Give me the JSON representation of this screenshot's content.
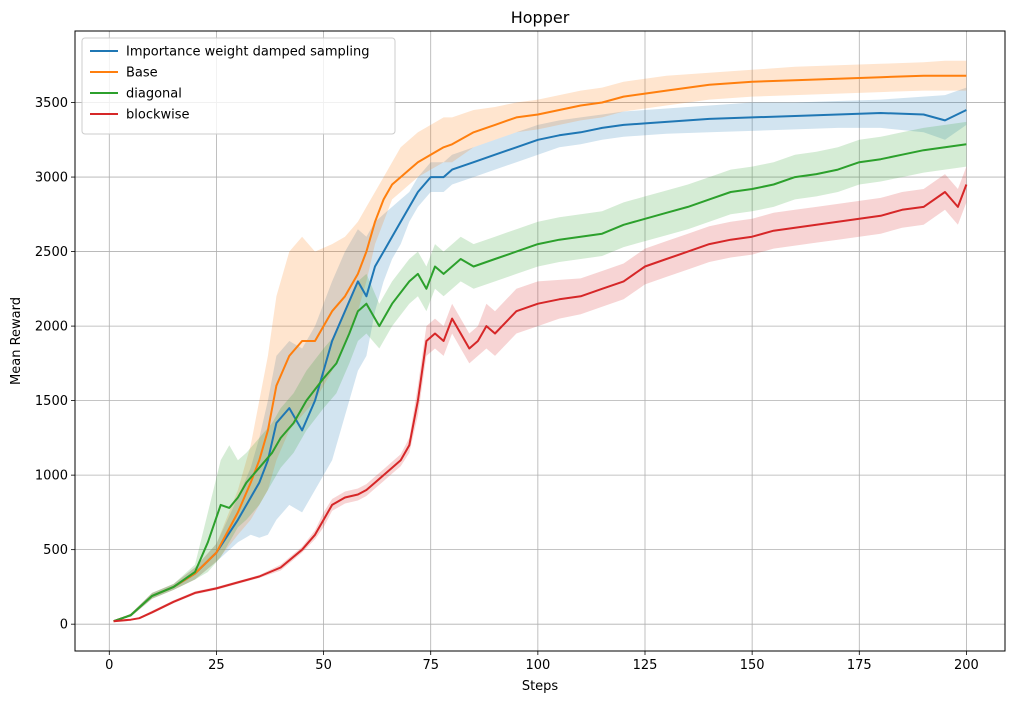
{
  "chart_data": {
    "type": "line",
    "title": "Hopper",
    "xlabel": "Steps",
    "ylabel": "Mean Reward",
    "xlim": [
      -8,
      209
    ],
    "ylim": [
      -180,
      3980
    ],
    "xticks": [
      0,
      25,
      50,
      75,
      100,
      125,
      150,
      175,
      200
    ],
    "yticks": [
      0,
      500,
      1000,
      1500,
      2000,
      2500,
      3000,
      3500
    ],
    "grid": true,
    "legend_position": "top-left",
    "series": [
      {
        "name": "Importance weight damped sampling",
        "color": "#1f77b4",
        "x": [
          1,
          5,
          10,
          15,
          20,
          25,
          30,
          33,
          35,
          37,
          39,
          42,
          45,
          48,
          52,
          55,
          58,
          60,
          62,
          64,
          66,
          68,
          70,
          72,
          75,
          78,
          80,
          85,
          90,
          95,
          100,
          105,
          110,
          115,
          120,
          125,
          130,
          140,
          150,
          160,
          170,
          180,
          190,
          195,
          200
        ],
        "y": [
          20,
          60,
          190,
          250,
          340,
          480,
          700,
          850,
          950,
          1100,
          1350,
          1450,
          1300,
          1500,
          1900,
          2100,
          2300,
          2200,
          2400,
          2500,
          2600,
          2700,
          2800,
          2900,
          3000,
          3000,
          3050,
          3100,
          3150,
          3200,
          3250,
          3280,
          3300,
          3330,
          3350,
          3360,
          3370,
          3390,
          3400,
          3410,
          3420,
          3430,
          3420,
          3380,
          3450
        ],
        "lower": [
          20,
          50,
          170,
          230,
          300,
          420,
          550,
          600,
          580,
          600,
          700,
          800,
          750,
          900,
          1100,
          1400,
          1700,
          1800,
          2100,
          2300,
          2450,
          2550,
          2700,
          2800,
          2900,
          2900,
          2950,
          3000,
          3050,
          3100,
          3150,
          3200,
          3220,
          3250,
          3270,
          3280,
          3290,
          3300,
          3310,
          3320,
          3330,
          3330,
          3300,
          3250,
          3350
        ],
        "upper": [
          20,
          70,
          210,
          270,
          380,
          540,
          850,
          1050,
          1250,
          1500,
          1800,
          1900,
          1850,
          2000,
          2300,
          2500,
          2650,
          2600,
          2700,
          2750,
          2800,
          2850,
          2900,
          3000,
          3100,
          3100,
          3150,
          3200,
          3250,
          3300,
          3350,
          3380,
          3400,
          3420,
          3440,
          3450,
          3460,
          3480,
          3500,
          3500,
          3510,
          3520,
          3540,
          3550,
          3600
        ]
      },
      {
        "name": "Base",
        "color": "#ff7f0e",
        "x": [
          1,
          5,
          10,
          15,
          20,
          25,
          30,
          33,
          35,
          37,
          39,
          42,
          45,
          48,
          52,
          55,
          58,
          60,
          62,
          64,
          66,
          68,
          70,
          72,
          75,
          78,
          80,
          85,
          90,
          95,
          100,
          105,
          110,
          115,
          120,
          125,
          130,
          140,
          150,
          160,
          170,
          180,
          190,
          195,
          200
        ],
        "y": [
          20,
          60,
          190,
          250,
          340,
          480,
          750,
          950,
          1100,
          1300,
          1600,
          1800,
          1900,
          1900,
          2100,
          2200,
          2350,
          2500,
          2700,
          2850,
          2950,
          3000,
          3050,
          3100,
          3150,
          3200,
          3220,
          3300,
          3350,
          3400,
          3420,
          3450,
          3480,
          3500,
          3540,
          3560,
          3580,
          3620,
          3640,
          3650,
          3660,
          3670,
          3680,
          3680,
          3680
        ],
        "lower": [
          20,
          50,
          170,
          230,
          300,
          420,
          600,
          700,
          800,
          900,
          1100,
          1300,
          1400,
          1500,
          1700,
          1900,
          2100,
          2300,
          2550,
          2700,
          2850,
          2900,
          2950,
          3000,
          3050,
          3100,
          3100,
          3200,
          3250,
          3300,
          3320,
          3350,
          3380,
          3400,
          3440,
          3460,
          3480,
          3520,
          3540,
          3550,
          3560,
          3570,
          3580,
          3580,
          3580
        ],
        "upper": [
          20,
          70,
          210,
          270,
          380,
          540,
          900,
          1200,
          1500,
          1800,
          2200,
          2500,
          2600,
          2500,
          2550,
          2600,
          2700,
          2800,
          2900,
          3000,
          3100,
          3200,
          3250,
          3300,
          3350,
          3400,
          3400,
          3450,
          3470,
          3500,
          3520,
          3550,
          3580,
          3600,
          3640,
          3660,
          3680,
          3700,
          3720,
          3740,
          3750,
          3760,
          3770,
          3780,
          3780
        ]
      },
      {
        "name": "diagonal",
        "color": "#2ca02c",
        "x": [
          1,
          5,
          10,
          15,
          20,
          23,
          26,
          28,
          30,
          32,
          35,
          38,
          40,
          43,
          46,
          50,
          53,
          56,
          58,
          60,
          63,
          66,
          70,
          72,
          74,
          76,
          78,
          82,
          85,
          90,
          95,
          100,
          105,
          110,
          115,
          120,
          125,
          130,
          135,
          140,
          145,
          150,
          155,
          160,
          165,
          170,
          175,
          180,
          185,
          190,
          195,
          200
        ],
        "y": [
          20,
          60,
          190,
          250,
          350,
          550,
          800,
          780,
          850,
          950,
          1050,
          1150,
          1250,
          1350,
          1500,
          1650,
          1750,
          1950,
          2100,
          2150,
          2000,
          2150,
          2300,
          2350,
          2250,
          2400,
          2350,
          2450,
          2400,
          2450,
          2500,
          2550,
          2580,
          2600,
          2620,
          2680,
          2720,
          2760,
          2800,
          2850,
          2900,
          2920,
          2950,
          3000,
          3020,
          3050,
          3100,
          3120,
          3150,
          3180,
          3200,
          3220
        ],
        "lower": [
          20,
          50,
          170,
          230,
          300,
          350,
          450,
          550,
          650,
          700,
          800,
          950,
          1050,
          1150,
          1300,
          1450,
          1550,
          1750,
          1900,
          1950,
          1850,
          2000,
          2150,
          2200,
          2100,
          2250,
          2200,
          2300,
          2250,
          2300,
          2350,
          2400,
          2430,
          2450,
          2470,
          2530,
          2570,
          2610,
          2650,
          2700,
          2750,
          2770,
          2800,
          2850,
          2870,
          2900,
          2950,
          2970,
          3000,
          3030,
          3050,
          3070
        ],
        "upper": [
          20,
          70,
          210,
          270,
          400,
          750,
          1100,
          1200,
          1100,
          1150,
          1250,
          1350,
          1450,
          1550,
          1700,
          1850,
          1950,
          2150,
          2300,
          2350,
          2150,
          2300,
          2450,
          2500,
          2400,
          2550,
          2500,
          2600,
          2550,
          2600,
          2650,
          2700,
          2730,
          2750,
          2770,
          2830,
          2870,
          2910,
          2950,
          3000,
          3050,
          3070,
          3100,
          3150,
          3170,
          3200,
          3250,
          3270,
          3300,
          3330,
          3350,
          3370
        ]
      },
      {
        "name": "blockwise",
        "color": "#d62728",
        "x": [
          1,
          5,
          7,
          10,
          15,
          20,
          25,
          30,
          35,
          40,
          45,
          48,
          50,
          52,
          55,
          58,
          60,
          62,
          64,
          66,
          68,
          70,
          72,
          74,
          76,
          78,
          80,
          82,
          84,
          86,
          88,
          90,
          95,
          100,
          105,
          110,
          115,
          120,
          125,
          130,
          135,
          140,
          145,
          150,
          155,
          160,
          165,
          170,
          175,
          180,
          185,
          190,
          195,
          198,
          200
        ],
        "y": [
          20,
          30,
          40,
          80,
          150,
          210,
          240,
          280,
          320,
          380,
          500,
          600,
          700,
          800,
          850,
          870,
          900,
          950,
          1000,
          1050,
          1100,
          1200,
          1500,
          1900,
          1950,
          1900,
          2050,
          1950,
          1850,
          1900,
          2000,
          1950,
          2100,
          2150,
          2180,
          2200,
          2250,
          2300,
          2400,
          2450,
          2500,
          2550,
          2580,
          2600,
          2640,
          2660,
          2680,
          2700,
          2720,
          2740,
          2780,
          2800,
          2900,
          2800,
          2950
        ],
        "lower": [
          20,
          25,
          35,
          70,
          140,
          200,
          230,
          270,
          310,
          360,
          480,
          570,
          650,
          760,
          810,
          830,
          860,
          910,
          960,
          1010,
          1060,
          1150,
          1400,
          1800,
          1850,
          1800,
          1950,
          1850,
          1750,
          1800,
          1850,
          1800,
          1950,
          2000,
          2050,
          2080,
          2130,
          2180,
          2280,
          2330,
          2380,
          2430,
          2460,
          2480,
          2520,
          2540,
          2560,
          2580,
          2600,
          2620,
          2660,
          2680,
          2780,
          2680,
          2830
        ],
        "upper": [
          20,
          35,
          45,
          90,
          160,
          220,
          250,
          290,
          330,
          400,
          520,
          630,
          750,
          840,
          890,
          910,
          940,
          990,
          1040,
          1090,
          1140,
          1250,
          1600,
          2000,
          2050,
          2000,
          2150,
          2050,
          1950,
          2000,
          2150,
          2100,
          2250,
          2300,
          2310,
          2320,
          2370,
          2420,
          2520,
          2570,
          2620,
          2670,
          2700,
          2720,
          2760,
          2780,
          2800,
          2820,
          2840,
          2860,
          2900,
          2920,
          3020,
          2920,
          3070
        ]
      }
    ]
  }
}
